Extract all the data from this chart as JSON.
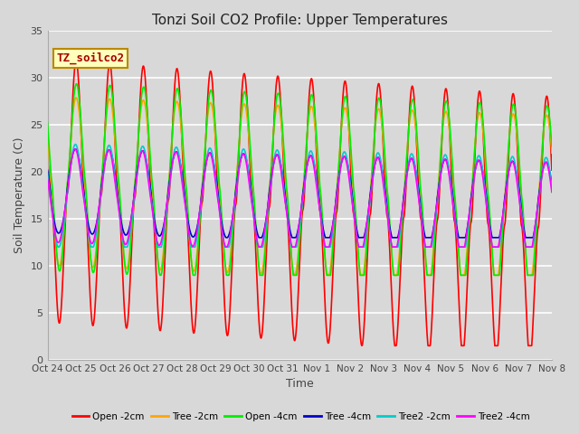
{
  "title": "Tonzi Soil CO2 Profile: Upper Temperatures",
  "ylabel": "Soil Temperature (C)",
  "xlabel": "Time",
  "box_label": "TZ_soilco2",
  "ylim": [
    0,
    35
  ],
  "yticks": [
    0,
    5,
    10,
    15,
    20,
    25,
    30,
    35
  ],
  "xtick_labels": [
    "Oct 24",
    "Oct 25",
    "Oct 26",
    "Oct 27",
    "Oct 28",
    "Oct 29",
    "Oct 30",
    "Oct 31",
    "Nov 1",
    "Nov 2",
    "Nov 3",
    "Nov 4",
    "Nov 5",
    "Nov 6",
    "Nov 7",
    "Nov 8"
  ],
  "series": [
    {
      "name": "Open -2cm",
      "color": "#FF0000",
      "lw": 1.2
    },
    {
      "name": "Tree -2cm",
      "color": "#FFA500",
      "lw": 1.2
    },
    {
      "name": "Open -4cm",
      "color": "#00EE00",
      "lw": 1.2
    },
    {
      "name": "Tree -4cm",
      "color": "#0000CC",
      "lw": 1.2
    },
    {
      "name": "Tree2 -2cm",
      "color": "#00CCCC",
      "lw": 1.2
    },
    {
      "name": "Tree2 -4cm",
      "color": "#FF00FF",
      "lw": 1.2
    }
  ],
  "bg_color": "#D8D8D8",
  "grid_color": "#FFFFFF",
  "n_days": 15,
  "pts_per_day": 288,
  "figsize": [
    6.4,
    4.8
  ],
  "dpi": 100
}
